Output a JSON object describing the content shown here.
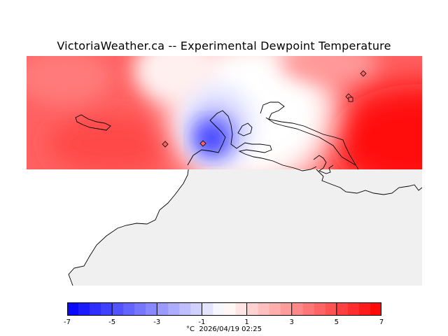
{
  "title": "VictoriaWeather.ca -- Experimental Dewpoint Temperature",
  "colorbar": {
    "min": -7,
    "max": 7,
    "steps": 28,
    "tick_labels": [
      "-7",
      "-5",
      "-3",
      "-1",
      "1",
      "3",
      "5",
      "7"
    ],
    "tick_values": [
      -7,
      -5,
      -3,
      -1,
      1,
      3,
      5,
      7
    ],
    "low_color": "#0000ff",
    "mid_color": "#ffffff",
    "high_color": "#ff0000"
  },
  "caption": {
    "unit": "°C",
    "timestamp": "2026/04/19 02:25"
  },
  "map": {
    "land_color": "#f0f0f0",
    "coast_color": "#000000",
    "station_marker": "diamond-icon"
  }
}
